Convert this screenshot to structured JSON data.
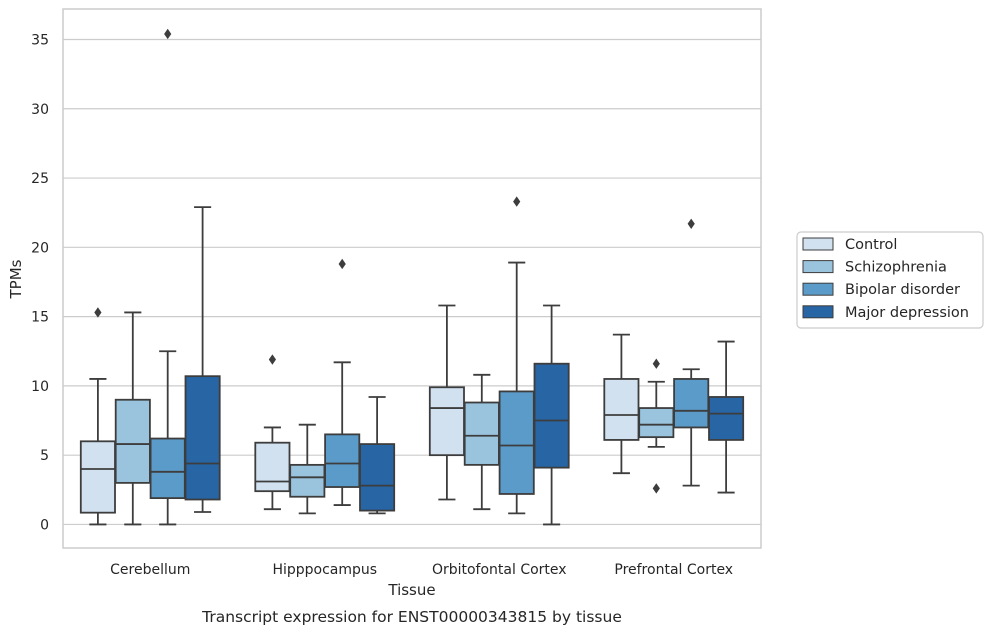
{
  "chart_data": {
    "type": "box",
    "xlabel": "Tissue",
    "ylabel": "TPMs",
    "caption": "Transcript expression for ENST00000343815 by tissue",
    "ylim": [
      -1.7,
      37.2
    ],
    "yticks": [
      0,
      5,
      10,
      15,
      20,
      25,
      30,
      35
    ],
    "grid": true,
    "legend_position": "right",
    "categories": [
      "Cerebellum",
      "Hipppocampus",
      "Orbitofontal Cortex",
      "Prefrontal Cortex"
    ],
    "series": [
      {
        "name": "Control",
        "color": "#d1e1f0",
        "boxes": [
          {
            "whislo": 0.0,
            "q1": 0.85,
            "med": 4.0,
            "q3": 6.0,
            "whishi": 10.5,
            "fliers": [
              15.3
            ]
          },
          {
            "whislo": 1.1,
            "q1": 2.4,
            "med": 3.1,
            "q3": 5.9,
            "whishi": 7.0,
            "fliers": [
              11.9
            ]
          },
          {
            "whislo": 1.8,
            "q1": 5.0,
            "med": 8.4,
            "q3": 9.9,
            "whishi": 15.8,
            "fliers": []
          },
          {
            "whislo": 3.7,
            "q1": 6.1,
            "med": 7.9,
            "q3": 10.5,
            "whishi": 13.7,
            "fliers": []
          }
        ]
      },
      {
        "name": "Schizophrenia",
        "color": "#9ac4dd",
        "boxes": [
          {
            "whislo": 0.0,
            "q1": 3.0,
            "med": 5.8,
            "q3": 9.0,
            "whishi": 15.3,
            "fliers": []
          },
          {
            "whislo": 0.8,
            "q1": 2.0,
            "med": 3.4,
            "q3": 4.3,
            "whishi": 7.2,
            "fliers": []
          },
          {
            "whislo": 1.1,
            "q1": 4.3,
            "med": 6.4,
            "q3": 8.8,
            "whishi": 10.8,
            "fliers": []
          },
          {
            "whislo": 5.6,
            "q1": 6.3,
            "med": 7.2,
            "q3": 8.4,
            "whishi": 10.3,
            "fliers": [
              11.6,
              2.6
            ]
          }
        ]
      },
      {
        "name": "Bipolar disorder",
        "color": "#5b9bc9",
        "boxes": [
          {
            "whislo": 0.0,
            "q1": 1.9,
            "med": 3.8,
            "q3": 6.2,
            "whishi": 12.5,
            "fliers": [
              35.4
            ]
          },
          {
            "whislo": 1.4,
            "q1": 2.7,
            "med": 4.4,
            "q3": 6.5,
            "whishi": 11.7,
            "fliers": [
              18.8
            ]
          },
          {
            "whislo": 0.8,
            "q1": 2.2,
            "med": 5.7,
            "q3": 9.6,
            "whishi": 18.9,
            "fliers": [
              23.3
            ]
          },
          {
            "whislo": 2.8,
            "q1": 7.0,
            "med": 8.2,
            "q3": 10.5,
            "whishi": 11.2,
            "fliers": [
              21.7
            ]
          }
        ]
      },
      {
        "name": "Major depression",
        "color": "#2765a5",
        "boxes": [
          {
            "whislo": 0.9,
            "q1": 1.8,
            "med": 4.4,
            "q3": 10.7,
            "whishi": 22.9,
            "fliers": []
          },
          {
            "whislo": 0.8,
            "q1": 1.0,
            "med": 2.8,
            "q3": 5.8,
            "whishi": 9.2,
            "fliers": []
          },
          {
            "whislo": 0.0,
            "q1": 4.1,
            "med": 7.5,
            "q3": 11.6,
            "whishi": 15.8,
            "fliers": []
          },
          {
            "whislo": 2.3,
            "q1": 6.1,
            "med": 8.0,
            "q3": 9.2,
            "whishi": 13.2,
            "fliers": []
          }
        ]
      }
    ]
  }
}
